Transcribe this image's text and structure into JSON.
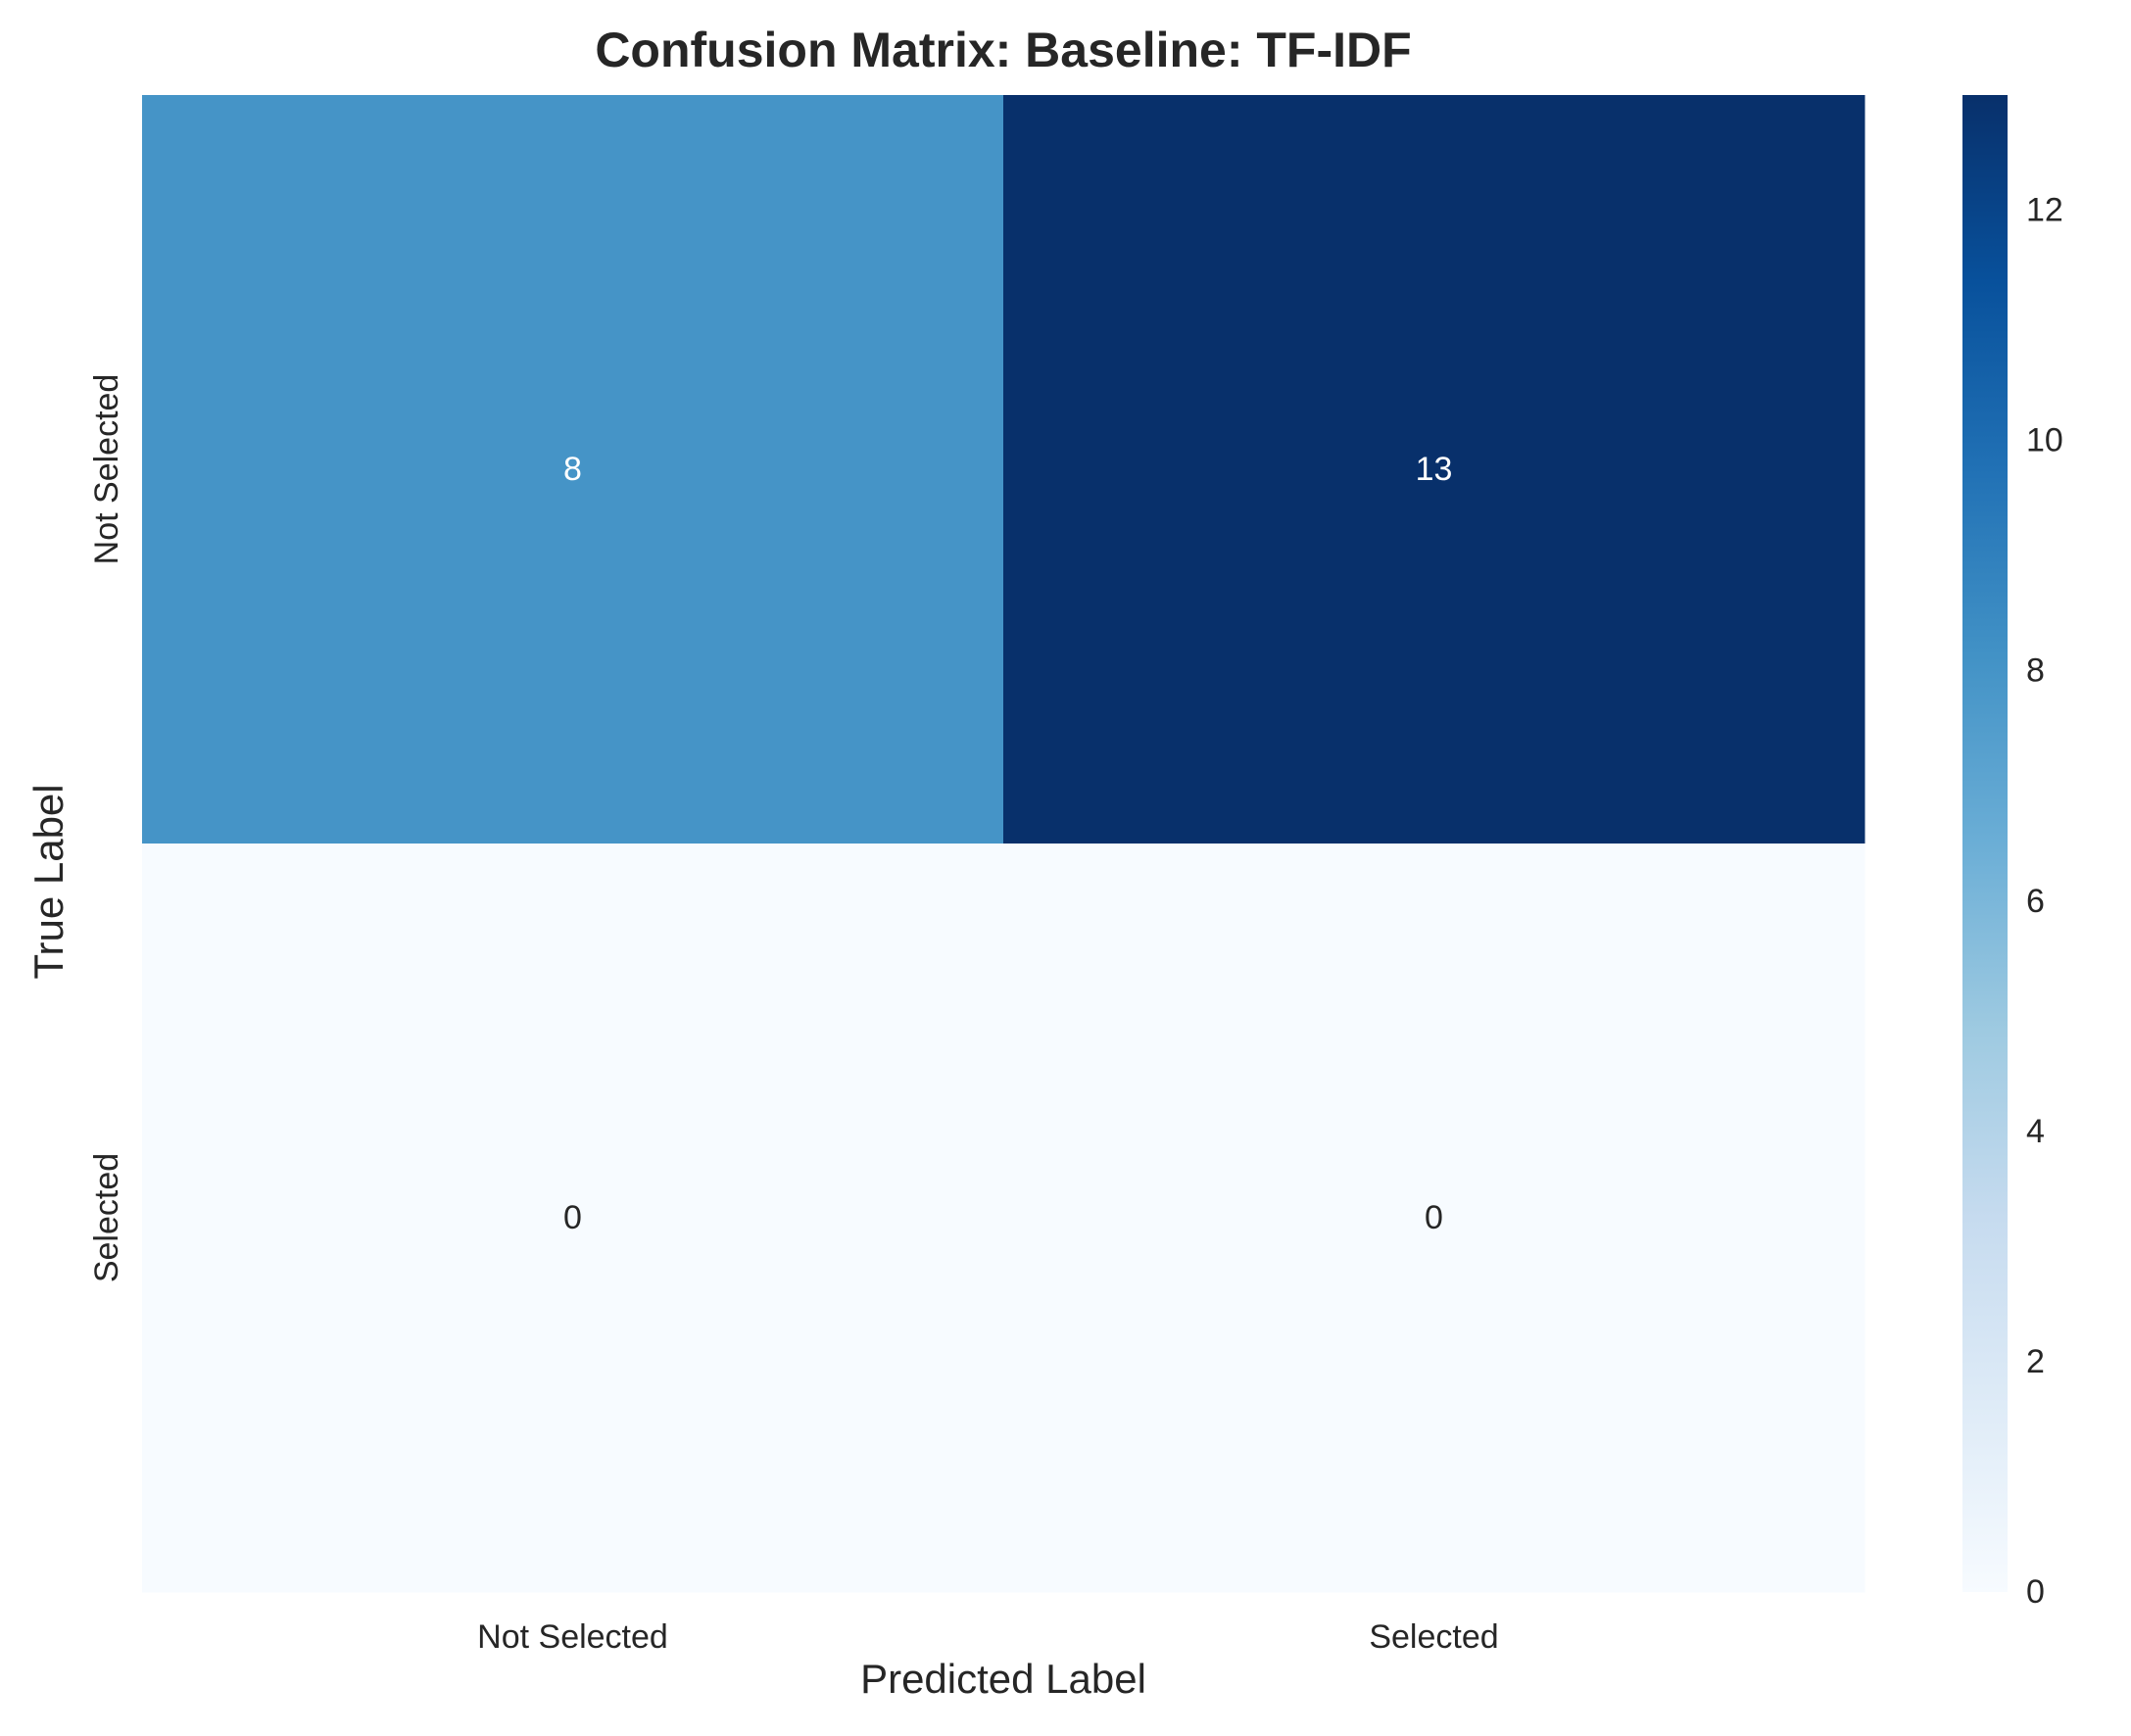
{
  "chart_data": {
    "type": "heatmap",
    "title": "Confusion Matrix: Baseline: TF-IDF",
    "xlabel": "Predicted Label",
    "ylabel": "True Label",
    "x_categories": [
      "Not Selected",
      "Selected"
    ],
    "y_categories": [
      "Not Selected",
      "Selected"
    ],
    "values": [
      [
        8,
        13
      ],
      [
        0,
        0
      ]
    ],
    "colormap": "Blues",
    "colorbar": {
      "range": [
        0,
        13
      ],
      "ticks": [
        0,
        2,
        4,
        6,
        8,
        10,
        12
      ]
    },
    "grid": false
  }
}
